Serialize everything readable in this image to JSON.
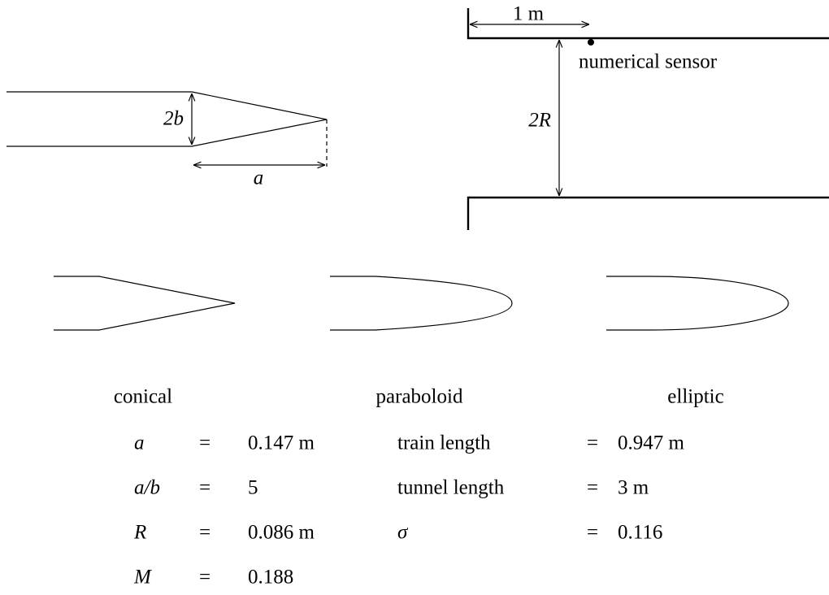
{
  "nose": {
    "width_label": "2b",
    "length_label": "a"
  },
  "tunnel": {
    "distance_label": "1 m",
    "sensor_label": "numerical sensor",
    "height_label": "2R"
  },
  "shapes": [
    "conical",
    "paraboloid",
    "elliptic"
  ],
  "parameters": {
    "left": [
      [
        "a",
        "=",
        "0.147 m"
      ],
      [
        "a/b",
        "=",
        "5"
      ],
      [
        "R",
        "=",
        "0.086 m"
      ],
      [
        "M",
        "=",
        "0.188"
      ]
    ],
    "right": [
      [
        "train length",
        "=",
        "0.947 m"
      ],
      [
        "tunnel length",
        "=",
        "3 m"
      ],
      [
        "σ",
        "=",
        "0.116"
      ]
    ]
  }
}
